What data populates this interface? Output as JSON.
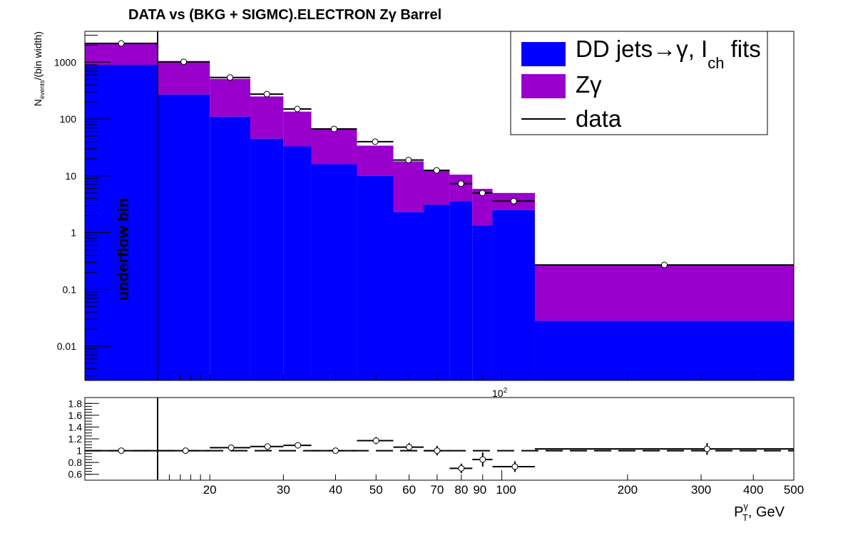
{
  "chart_data": [
    {
      "type": "bar",
      "title": "DATA vs (BKG + SIGMC).ELECTRON Zγ  Barrel",
      "ylabel_main": "N",
      "ylabel_sub": "events",
      "ylabel_tail": "/(bin width)",
      "scale": "log",
      "ylim": [
        0.0025,
        3500
      ],
      "y_ticks": [
        "0.01",
        "0.1",
        "1",
        "10",
        "100",
        "1000"
      ],
      "x_exponent_label": "10",
      "x_exponent_sup": "2",
      "annotation": "underflow bin",
      "legend_position": "top-right",
      "legend": {
        "bkg_a": "DD jets",
        "bkg_arrow": "→",
        "bkg_b": "γ, I",
        "bkg_sub": "ch",
        "bkg_c": " fits",
        "sig": "Zγ",
        "data": "data"
      },
      "colors": {
        "bkg": "#0000ff",
        "sig": "#9900cc",
        "data": "#000000"
      },
      "bins": [
        {
          "lo": "underflow",
          "hi": 15,
          "bkg": 900,
          "total": 2150,
          "data": 2150
        },
        {
          "lo": 15,
          "hi": 20,
          "bkg": 270,
          "total": 1000,
          "data": 1020
        },
        {
          "lo": 20,
          "hi": 25,
          "bkg": 110,
          "total": 510,
          "data": 540
        },
        {
          "lo": 25,
          "hi": 30,
          "bkg": 45,
          "total": 250,
          "data": 275
        },
        {
          "lo": 30,
          "hi": 35,
          "bkg": 33,
          "total": 135,
          "data": 150
        },
        {
          "lo": 35,
          "hi": 45,
          "bkg": 16,
          "total": 66,
          "data": 67
        },
        {
          "lo": 45,
          "hi": 55,
          "bkg": 10,
          "total": 34,
          "data": 40
        },
        {
          "lo": 55,
          "hi": 65,
          "bkg": 2.3,
          "total": 18,
          "data": 19
        },
        {
          "lo": 65,
          "hi": 75,
          "bkg": 3.1,
          "total": 12.5,
          "data": 12.5
        },
        {
          "lo": 75,
          "hi": 85,
          "bkg": 3.6,
          "total": 10.5,
          "data": 7.3
        },
        {
          "lo": 85,
          "hi": 95,
          "bkg": 1.35,
          "total": 5.9,
          "data": 5.0
        },
        {
          "lo": 95,
          "hi": 120,
          "bkg": 2.5,
          "total": 5.0,
          "data": 3.6
        },
        {
          "lo": 120,
          "hi": 500,
          "bkg": 0.028,
          "total": 0.27,
          "data": 0.27
        }
      ]
    },
    {
      "type": "scatter",
      "ylim": [
        0.5,
        1.9
      ],
      "reference_line": 1.0,
      "y_ticks": [
        "0.6",
        "0.8",
        "1",
        "1.2",
        "1.4",
        "1.6",
        "1.8"
      ],
      "xlabel_main": "P",
      "xlabel_sub": "T",
      "xlabel_sup": "γ",
      "xlabel_tail": ", GeV",
      "x_ticks": [
        "20",
        "30",
        "40",
        "50",
        "60",
        "70",
        "80",
        "90",
        "100",
        "200",
        "300",
        "400",
        "500"
      ],
      "points": [
        {
          "x": "underflow",
          "y": 1.0,
          "err": 0.02
        },
        {
          "x": 17.5,
          "y": 1.0,
          "err": 0.02
        },
        {
          "x": 22.5,
          "y": 1.05,
          "err": 0.03
        },
        {
          "x": 27.5,
          "y": 1.07,
          "err": 0.03
        },
        {
          "x": 32.5,
          "y": 1.09,
          "err": 0.04
        },
        {
          "x": 40,
          "y": 1.0,
          "err": 0.03
        },
        {
          "x": 50,
          "y": 1.17,
          "err": 0.06
        },
        {
          "x": 60,
          "y": 1.06,
          "err": 0.07
        },
        {
          "x": 70,
          "y": 1.0,
          "err": 0.08
        },
        {
          "x": 80,
          "y": 0.7,
          "err": 0.08
        },
        {
          "x": 90,
          "y": 0.85,
          "err": 0.12
        },
        {
          "x": 107.5,
          "y": 0.73,
          "err": 0.09
        },
        {
          "x": 310,
          "y": 1.03,
          "err": 0.1
        }
      ]
    }
  ]
}
